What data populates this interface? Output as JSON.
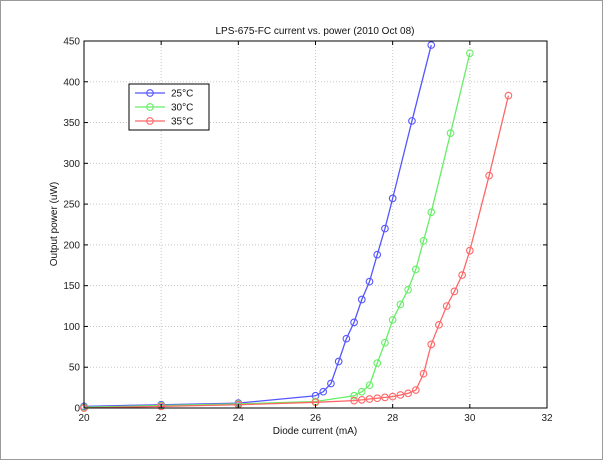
{
  "chart_data": {
    "type": "line",
    "title": "LPS-675-FC current vs. power (2010 Oct 08)",
    "xlabel": "Diode current (mA)",
    "ylabel": "Output power (uW)",
    "xlim": [
      20,
      32
    ],
    "ylim": [
      0,
      450
    ],
    "xticks": [
      20,
      22,
      24,
      26,
      28,
      30,
      32
    ],
    "yticks": [
      0,
      50,
      100,
      150,
      200,
      250,
      300,
      350,
      400,
      450
    ],
    "grid": true,
    "legend_position": "top-left",
    "series": [
      {
        "name": "25°C",
        "color": "#5555ff",
        "marker": "circle",
        "x": [
          20,
          22,
          24,
          26,
          26.2,
          26.4,
          26.6,
          26.8,
          27,
          27.2,
          27.4,
          27.6,
          27.8,
          28,
          28.5,
          29
        ],
        "y": [
          2,
          4,
          6,
          15,
          20,
          30,
          57,
          85,
          105,
          133,
          155,
          188,
          220,
          257,
          352,
          445
        ]
      },
      {
        "name": "30°C",
        "color": "#66ee66",
        "marker": "circle",
        "x": [
          20,
          22,
          24,
          26,
          27,
          27.2,
          27.4,
          27.6,
          27.8,
          28,
          28.2,
          28.4,
          28.6,
          28.8,
          29,
          29.5,
          30
        ],
        "y": [
          1,
          3,
          5,
          8,
          15,
          20,
          28,
          55,
          80,
          108,
          127,
          145,
          170,
          205,
          240,
          337,
          435
        ]
      },
      {
        "name": "35°C",
        "color": "#ff6666",
        "marker": "circle",
        "x": [
          20,
          22,
          24,
          26,
          27,
          27.2,
          27.4,
          27.6,
          27.8,
          28,
          28.2,
          28.4,
          28.6,
          28.8,
          29,
          29.2,
          29.4,
          29.6,
          29.8,
          30,
          30.5,
          31
        ],
        "y": [
          0,
          2,
          4,
          7,
          9,
          10,
          11,
          12,
          13,
          14,
          16,
          18,
          22,
          42,
          78,
          102,
          125,
          143,
          163,
          193,
          285,
          383
        ]
      }
    ]
  }
}
